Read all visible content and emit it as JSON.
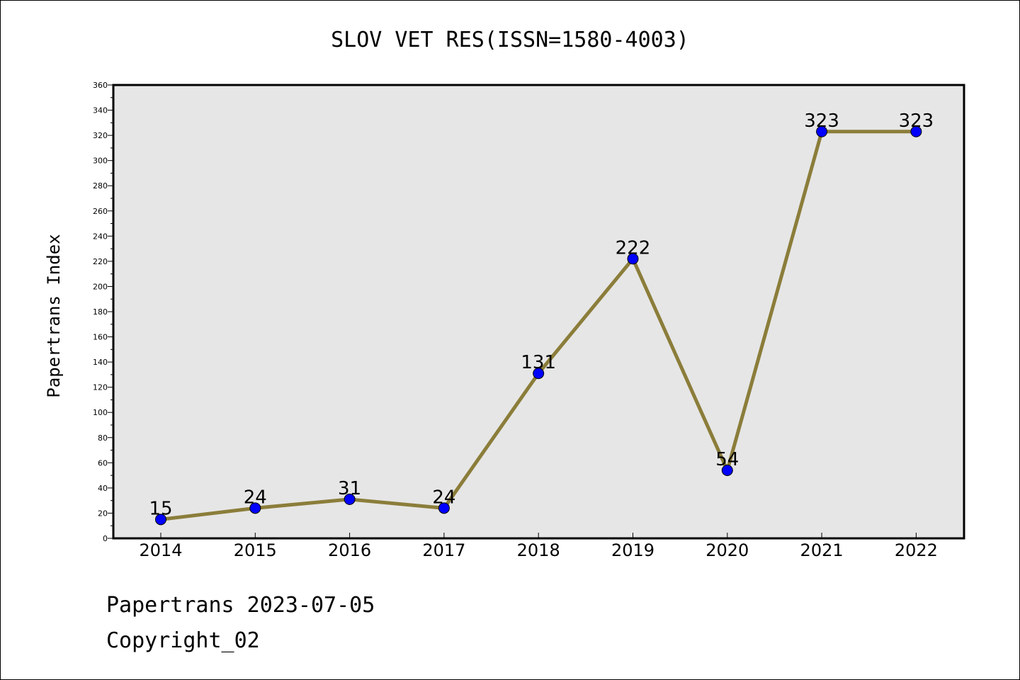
{
  "chart_data": {
    "type": "line",
    "title": "SLOV VET RES(ISSN=1580-4003)",
    "xlabel": "",
    "ylabel": "Papertrans Index",
    "categories": [
      "2014",
      "2015",
      "2016",
      "2017",
      "2018",
      "2019",
      "2020",
      "2021",
      "2022"
    ],
    "series": [
      {
        "values": [
          15,
          24,
          31,
          24,
          131,
          222,
          54,
          323,
          323
        ]
      }
    ],
    "ylim": [
      0,
      360
    ],
    "ytick_step": 20,
    "yticks": [
      "0",
      "20",
      "40",
      "60",
      "80",
      "100",
      "120",
      "140",
      "160",
      "180",
      "200",
      "220",
      "240",
      "260",
      "280",
      "300",
      "320",
      "340",
      "360"
    ],
    "grid": false,
    "legend": "none",
    "colors": {
      "line": "#8b7d3a",
      "marker": "#0000ff",
      "plot_bg": "#e6e6e6"
    }
  },
  "footer": {
    "line1": "Papertrans 2023-07-05",
    "line2": "Copyright_02"
  }
}
